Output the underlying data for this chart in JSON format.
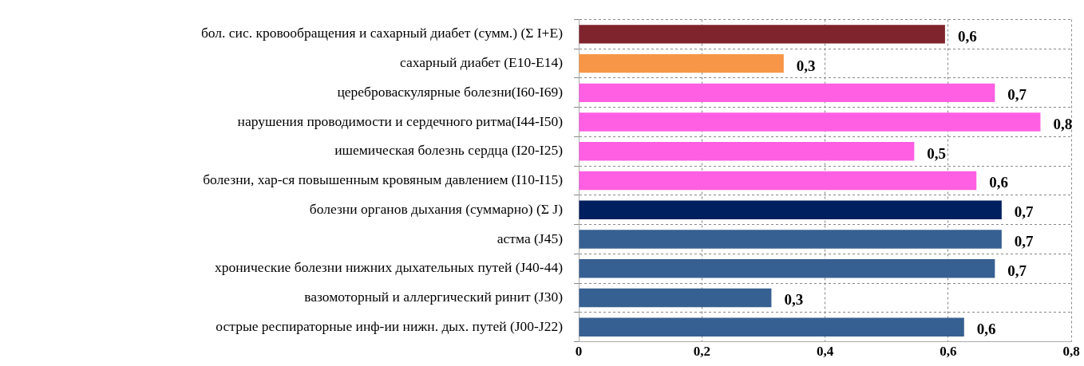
{
  "chart_data": {
    "type": "bar",
    "orientation": "horizontal",
    "categories": [
      "бол. сис. кровообращения и сахарный диабет (сумм.) (Σ I+E)",
      "сахарный диабет (E10-E14)",
      "цереброваскулярные болезни(I60-I69)",
      "нарушения проводимости и сердечного ритма(I44-I50)",
      "ишемическая болезнь сердца (I20-I25)",
      "болезни, хар-ся повышенным кровяным давлением (I10-I15)",
      "болезни органов дыхания (суммарно) (Σ J)",
      "астма (J45)",
      "хронические болезни нижних дыхательных путей (J40-44)",
      "вазомоторный и аллергический ринит (J30)",
      "острые респираторные инф-ии нижн. дых. путей (J00-J22)"
    ],
    "values": [
      0.595,
      0.333,
      0.676,
      0.75,
      0.545,
      0.646,
      0.687,
      0.687,
      0.676,
      0.313,
      0.626
    ],
    "colors": [
      "#7f232d",
      "#f79646",
      "#ff5fe2",
      "#ff5fe2",
      "#ff5fe2",
      "#ff5fe2",
      "#001f5f",
      "#376092",
      "#376092",
      "#376092",
      "#376092"
    ],
    "value_labels": [
      "0,6",
      "0,3",
      "0,7",
      "0,8",
      "0,5",
      "0,6",
      "0,7",
      "0,7",
      "0,7",
      "0,3",
      "0,6"
    ],
    "xlim": [
      0,
      0.8
    ],
    "xticks": [
      {
        "value": 0,
        "label": "0"
      },
      {
        "value": 0.2,
        "label": "0,2"
      },
      {
        "value": 0.4,
        "label": "0,4"
      },
      {
        "value": 0.6,
        "label": "0,6"
      },
      {
        "value": 0.8,
        "label": "0,8"
      }
    ],
    "grid": true
  }
}
